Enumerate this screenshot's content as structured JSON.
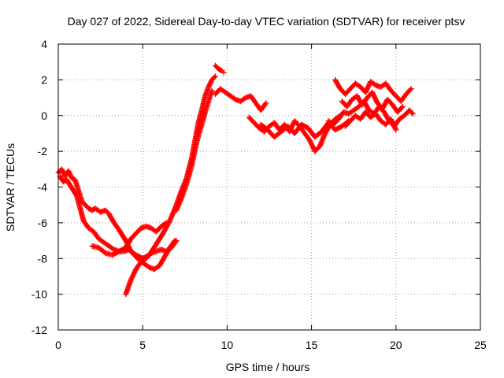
{
  "chart_data": {
    "type": "scatter",
    "title": "Day 027 of 2022, Sidereal Day-to-day VTEC variation (SDTVAR) for receiver ptsv",
    "xlabel": "GPS time / hours",
    "ylabel": "SDTVAR / TECUs",
    "xlim": [
      0,
      25
    ],
    "ylim": [
      -12,
      4
    ],
    "xticks": [
      "0",
      "5",
      "10",
      "15",
      "20",
      "25"
    ],
    "yticks": [
      "4",
      "2",
      "0",
      "-2",
      "-4",
      "-6",
      "-8",
      "-10",
      "-12"
    ],
    "grid": true,
    "marker": "+",
    "series_color": "#ff0000",
    "series": [
      {
        "x": [
          0.0,
          0.2,
          0.4,
          0.6,
          0.8,
          1.0,
          1.2,
          1.4,
          1.6,
          1.8,
          2.0,
          2.2,
          2.5,
          2.8,
          3.0,
          3.3,
          3.6,
          4.0,
          4.3,
          4.6,
          5.0,
          5.4,
          5.8,
          6.2,
          6.6,
          7.0,
          7.3,
          7.6,
          7.9,
          8.1,
          8.3,
          8.5,
          8.7,
          8.9,
          9.1,
          9.3
        ],
        "y": [
          -3.2,
          -3.0,
          -3.4,
          -3.1,
          -3.5,
          -3.6,
          -4.2,
          -4.8,
          -5.0,
          -5.2,
          -5.3,
          -5.2,
          -5.4,
          -5.3,
          -5.5,
          -6.0,
          -6.4,
          -7.0,
          -7.6,
          -7.8,
          -8.0,
          -7.8,
          -7.2,
          -6.6,
          -5.9,
          -5.0,
          -4.2,
          -3.5,
          -2.4,
          -1.4,
          -0.4,
          0.3,
          1.1,
          1.6,
          2.0,
          2.2
        ]
      },
      {
        "x": [
          0.1,
          0.3,
          0.5,
          0.7,
          0.9,
          1.1,
          1.3,
          1.5,
          1.8,
          2.1,
          2.4,
          2.7,
          3.0,
          3.3,
          3.6,
          3.9,
          4.2,
          4.5,
          4.8,
          5.1,
          5.4,
          5.7,
          6.0,
          6.3,
          6.6,
          6.9
        ],
        "y": [
          -3.4,
          -3.7,
          -3.6,
          -3.9,
          -4.2,
          -4.5,
          -5.2,
          -5.9,
          -6.3,
          -6.5,
          -6.9,
          -7.1,
          -7.3,
          -7.5,
          -7.6,
          -7.6,
          -7.5,
          -7.8,
          -8.1,
          -8.3,
          -8.5,
          -8.6,
          -8.4,
          -7.9,
          -7.4,
          -7.0
        ]
      },
      {
        "x": [
          2.0,
          2.4,
          2.8,
          3.2,
          3.6,
          4.0,
          4.3,
          4.6,
          4.9,
          5.2,
          5.5,
          5.8,
          6.1,
          6.4
        ],
        "y": [
          -7.3,
          -7.4,
          -7.7,
          -7.8,
          -7.6,
          -7.4,
          -6.9,
          -6.6,
          -6.3,
          -6.2,
          -6.3,
          -6.5,
          -6.2,
          -6.0
        ]
      },
      {
        "x": [
          4.0,
          4.3,
          4.6,
          4.9,
          5.2,
          5.5,
          5.8,
          6.1,
          6.4,
          6.7,
          7.0
        ],
        "y": [
          -10.0,
          -9.2,
          -8.6,
          -8.2,
          -8.0,
          -7.7,
          -7.6,
          -7.5,
          -7.6,
          -7.4,
          -7.0
        ]
      },
      {
        "x": [
          7.0,
          7.3,
          7.6,
          7.9,
          8.1,
          8.3,
          8.5,
          8.7,
          8.9,
          9.1
        ],
        "y": [
          -5.3,
          -4.6,
          -3.8,
          -2.8,
          -1.9,
          -1.1,
          -0.5,
          0.2,
          0.8,
          1.4
        ]
      },
      {
        "x": [
          9.3,
          9.5,
          9.7,
          9.8
        ],
        "y": [
          2.8,
          2.6,
          2.5,
          2.4
        ]
      },
      {
        "x": [
          9.3,
          9.6,
          9.9,
          10.2,
          10.5,
          10.8,
          11.1,
          11.4,
          11.7,
          12.0,
          12.3
        ],
        "y": [
          1.2,
          1.5,
          1.3,
          1.1,
          0.9,
          0.8,
          1.0,
          1.1,
          0.7,
          0.3,
          0.7
        ]
      },
      {
        "x": [
          11.3,
          11.6,
          11.9,
          12.2,
          12.5,
          12.8,
          13.1,
          13.4,
          13.7,
          14.0,
          14.3,
          14.6,
          14.9,
          15.2,
          15.5,
          15.8,
          16.1,
          16.4,
          16.7
        ],
        "y": [
          -0.1,
          -0.4,
          -0.7,
          -0.9,
          -0.6,
          -0.4,
          -0.8,
          -0.5,
          -0.9,
          -0.3,
          -0.6,
          -1.0,
          -1.4,
          -2.0,
          -1.7,
          -1.0,
          -0.5,
          -0.2,
          0.0
        ]
      },
      {
        "x": [
          12.0,
          12.4,
          12.8,
          13.2,
          13.6,
          14.0,
          14.4,
          14.8,
          15.2,
          15.6,
          16.0,
          16.4,
          16.8,
          17.2
        ],
        "y": [
          -0.5,
          -0.8,
          -1.2,
          -0.9,
          -0.6,
          -1.0,
          -0.5,
          -0.7,
          -1.2,
          -0.9,
          -0.4,
          -0.8,
          -0.6,
          -0.3
        ]
      },
      {
        "x": [
          16.0,
          16.3,
          16.6,
          16.9,
          17.2,
          17.5,
          17.8,
          18.1,
          18.4,
          18.7,
          19.0,
          19.3,
          19.6,
          19.9,
          20.2,
          20.5,
          20.8,
          21.0
        ],
        "y": [
          -0.3,
          -0.5,
          -0.2,
          0.2,
          0.1,
          0.3,
          0.5,
          0.8,
          0.3,
          0.1,
          0.5,
          0.2,
          -0.3,
          -0.6,
          -0.2,
          0.0,
          0.3,
          0.1
        ]
      },
      {
        "x": [
          16.4,
          16.7,
          17.0,
          17.3,
          17.6,
          17.9,
          18.2,
          18.5,
          18.8,
          19.1,
          19.4,
          19.7,
          20.0,
          20.3,
          20.6,
          20.9
        ],
        "y": [
          2.0,
          1.5,
          1.2,
          1.5,
          1.8,
          1.6,
          1.3,
          1.9,
          1.7,
          1.6,
          1.8,
          1.4,
          1.1,
          0.8,
          1.2,
          1.5
        ]
      },
      {
        "x": [
          16.8,
          17.1,
          17.4,
          17.7,
          18.0,
          18.3,
          18.6,
          18.9,
          19.2,
          19.5,
          19.8,
          20.1,
          20.4
        ],
        "y": [
          0.8,
          0.5,
          0.9,
          1.1,
          0.6,
          1.0,
          1.3,
          0.7,
          0.4,
          0.9,
          0.6,
          0.2,
          0.5
        ]
      },
      {
        "x": [
          17.0,
          17.3,
          17.6,
          17.9,
          18.2,
          18.5,
          18.8,
          19.1,
          19.4,
          19.7,
          20.0
        ],
        "y": [
          -0.6,
          -0.3,
          0.0,
          -0.2,
          0.2,
          -0.1,
          0.1,
          -0.3,
          -0.5,
          -0.2,
          -0.8
        ]
      }
    ]
  }
}
